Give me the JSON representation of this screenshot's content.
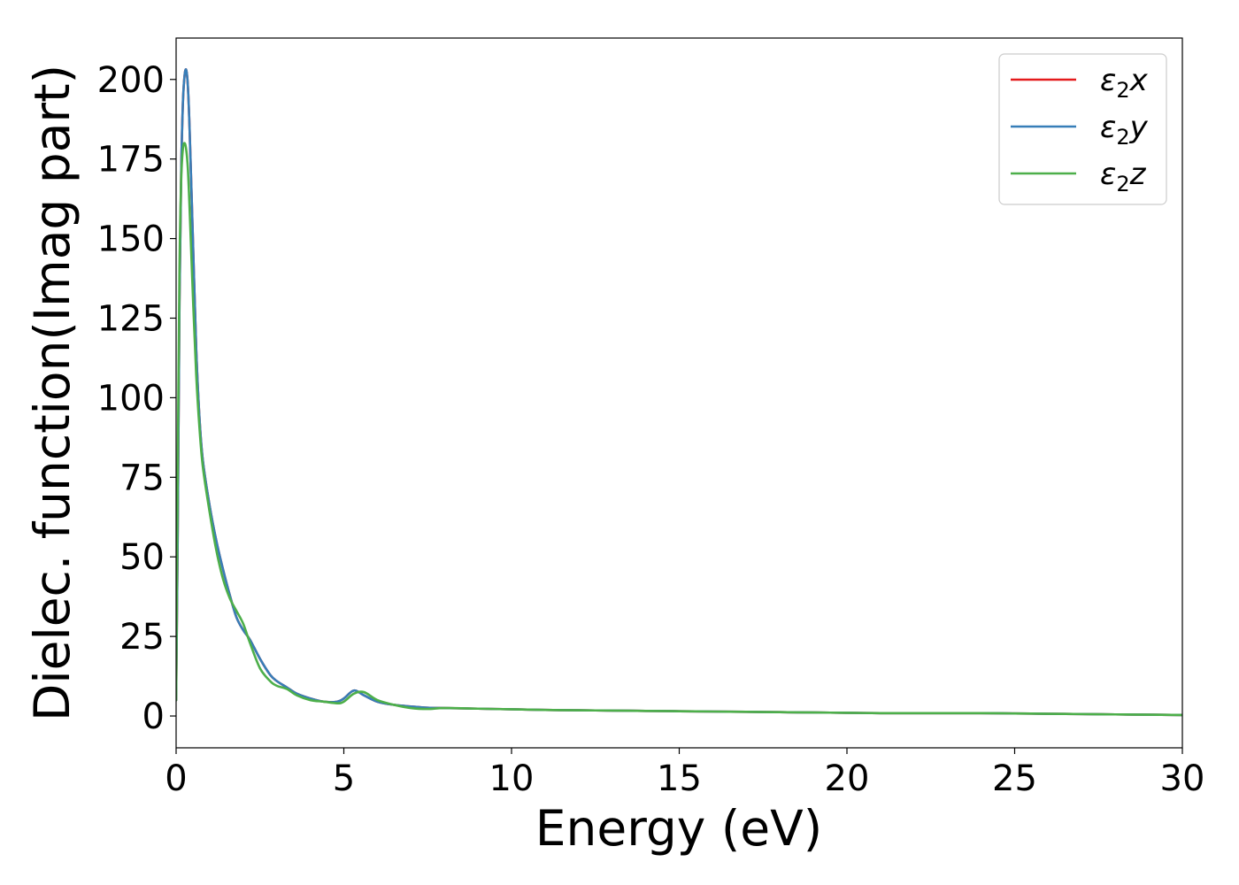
{
  "chart_data": {
    "type": "line",
    "title": "",
    "xlabel": "Energy (eV)",
    "ylabel": "Dielec. function(Imag part)",
    "xlim": [
      0,
      30
    ],
    "ylim": [
      -10,
      213
    ],
    "xticks": [
      0,
      5,
      10,
      15,
      20,
      25,
      30
    ],
    "yticks": [
      0,
      25,
      50,
      75,
      100,
      125,
      150,
      175,
      200
    ],
    "grid": false,
    "legend_position": "upper-right",
    "series": [
      {
        "name": "ε2x",
        "symbol": "ε",
        "subscript": "2",
        "component": "x",
        "color": "#e41a1c",
        "x": [
          0,
          0.05,
          0.1,
          0.15,
          0.2,
          0.25,
          0.3,
          0.35,
          0.4,
          0.5,
          0.6,
          0.7,
          0.8,
          1.0,
          1.2,
          1.4,
          1.6,
          1.8,
          2.0,
          2.2,
          2.5,
          2.8,
          3.0,
          3.3,
          3.6,
          4.0,
          4.4,
          4.8,
          5.0,
          5.3,
          5.6,
          6.0,
          6.5,
          7.0,
          7.5,
          8.0,
          9.0,
          10.0,
          11.0,
          12.0,
          13.0,
          14.0,
          15.0,
          16.0,
          17.0,
          18.0,
          19.0,
          20.0,
          21.0,
          22.0,
          23.0,
          24.0,
          25.0,
          26.0,
          27.0,
          28.0,
          29.0,
          30.0
        ],
        "y": [
          5,
          60,
          130,
          170,
          192,
          201,
          203,
          198,
          185,
          150,
          115,
          93,
          80,
          66,
          55,
          46,
          38,
          31,
          27,
          24,
          18,
          13,
          11,
          9,
          7,
          5.5,
          4.5,
          4.5,
          5.5,
          8,
          6.5,
          4.5,
          3.5,
          3,
          2.6,
          2.5,
          2.3,
          2.1,
          1.9,
          1.8,
          1.7,
          1.6,
          1.5,
          1.4,
          1.3,
          1.2,
          1.1,
          1.0,
          0.9,
          0.9,
          0.9,
          0.9,
          0.8,
          0.7,
          0.6,
          0.5,
          0.4,
          0.3
        ]
      },
      {
        "name": "ε2y",
        "symbol": "ε",
        "subscript": "2",
        "component": "y",
        "color": "#377eb8",
        "x": [
          0,
          0.05,
          0.1,
          0.15,
          0.2,
          0.25,
          0.3,
          0.35,
          0.4,
          0.5,
          0.6,
          0.7,
          0.8,
          1.0,
          1.2,
          1.4,
          1.6,
          1.8,
          2.0,
          2.2,
          2.5,
          2.8,
          3.0,
          3.3,
          3.6,
          4.0,
          4.4,
          4.8,
          5.0,
          5.3,
          5.6,
          6.0,
          6.5,
          7.0,
          7.5,
          8.0,
          9.0,
          10.0,
          11.0,
          12.0,
          13.0,
          14.0,
          15.0,
          16.0,
          17.0,
          18.0,
          19.0,
          20.0,
          21.0,
          22.0,
          23.0,
          24.0,
          25.0,
          26.0,
          27.0,
          28.0,
          29.0,
          30.0
        ],
        "y": [
          5,
          60,
          130,
          170,
          192,
          201,
          203,
          198,
          185,
          150,
          115,
          93,
          80,
          66,
          55,
          46,
          38,
          31,
          27,
          24,
          18,
          13,
          11,
          9,
          7,
          5.5,
          4.5,
          4.5,
          5.5,
          8,
          6.5,
          4.5,
          3.5,
          3,
          2.6,
          2.5,
          2.3,
          2.1,
          1.9,
          1.8,
          1.7,
          1.6,
          1.5,
          1.4,
          1.3,
          1.2,
          1.1,
          1.0,
          0.9,
          0.9,
          0.9,
          0.9,
          0.8,
          0.7,
          0.6,
          0.5,
          0.4,
          0.3
        ]
      },
      {
        "name": "ε2z",
        "symbol": "ε",
        "subscript": "2",
        "component": "z",
        "color": "#4daf4a",
        "x": [
          0,
          0.05,
          0.1,
          0.15,
          0.2,
          0.25,
          0.3,
          0.35,
          0.4,
          0.5,
          0.6,
          0.7,
          0.8,
          1.0,
          1.2,
          1.4,
          1.6,
          1.8,
          2.0,
          2.2,
          2.5,
          2.8,
          3.0,
          3.3,
          3.6,
          4.0,
          4.4,
          4.8,
          5.0,
          5.3,
          5.6,
          6.0,
          6.5,
          7.0,
          7.5,
          8.0,
          9.0,
          10.0,
          11.0,
          12.0,
          13.0,
          14.0,
          15.0,
          16.0,
          17.0,
          18.0,
          19.0,
          20.0,
          21.0,
          22.0,
          23.0,
          24.0,
          25.0,
          26.0,
          27.0,
          28.0,
          29.0,
          30.0
        ],
        "y": [
          5,
          80,
          140,
          168,
          178,
          180,
          178,
          172,
          160,
          132,
          107,
          90,
          78,
          64,
          52,
          43,
          37,
          33,
          29,
          23,
          15,
          11,
          9.5,
          8.5,
          6.5,
          5,
          4.5,
          4,
          4.5,
          7,
          7.5,
          5,
          3.5,
          2.5,
          2.2,
          2.5,
          2.3,
          2.1,
          1.9,
          1.8,
          1.7,
          1.6,
          1.5,
          1.4,
          1.3,
          1.2,
          1.1,
          1.0,
          0.9,
          0.9,
          0.9,
          0.9,
          0.8,
          0.7,
          0.6,
          0.5,
          0.4,
          0.3
        ]
      }
    ]
  }
}
